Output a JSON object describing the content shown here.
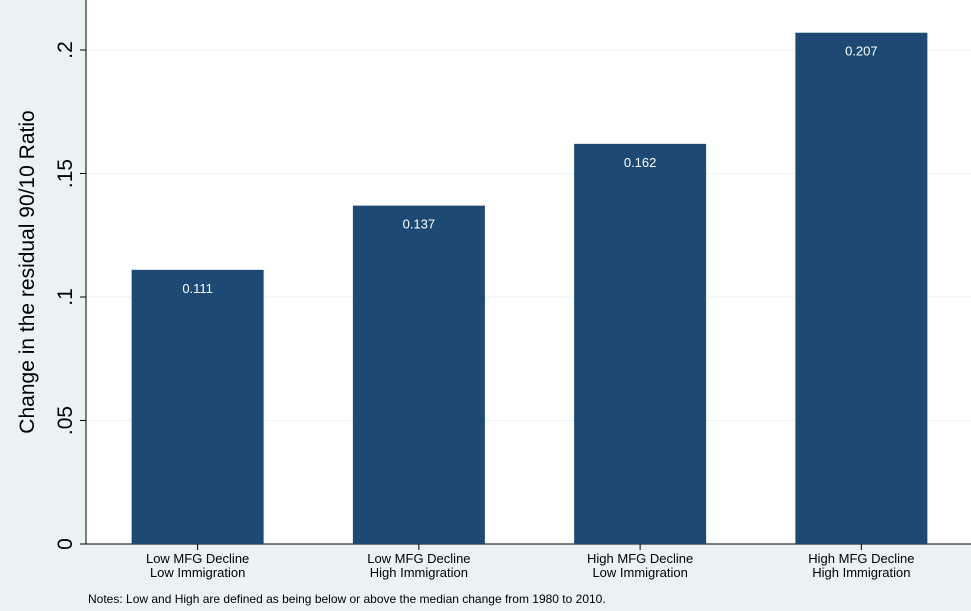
{
  "chart_data": {
    "type": "bar",
    "categories": [
      [
        "Low MFG Decline",
        "Low Immigration"
      ],
      [
        "Low MFG Decline",
        "High Immigration"
      ],
      [
        "High MFG Decline",
        "Low Immigration"
      ],
      [
        "High MFG Decline",
        "High Immigration"
      ]
    ],
    "values": [
      0.111,
      0.137,
      0.162,
      0.207
    ],
    "value_labels": [
      "0.111",
      "0.137",
      "0.162",
      "0.207"
    ],
    "xlabel": "",
    "ylabel": "Change in the residual 90/10 Ratio",
    "ylim": [
      0,
      0.22
    ],
    "yticks": [
      0,
      0.05,
      0.1,
      0.15,
      0.2
    ],
    "ytick_labels": [
      "0",
      ".05",
      ".1",
      ".15",
      ".2"
    ],
    "grid": true,
    "bar_color": "#1c4a72",
    "plot_background": "#ffffff",
    "page_background": "#eaf2f3",
    "grid_color": "#eaf2f3"
  },
  "note": "Notes: Low and High are defined as being below or above the median change from 1980 to 2010."
}
